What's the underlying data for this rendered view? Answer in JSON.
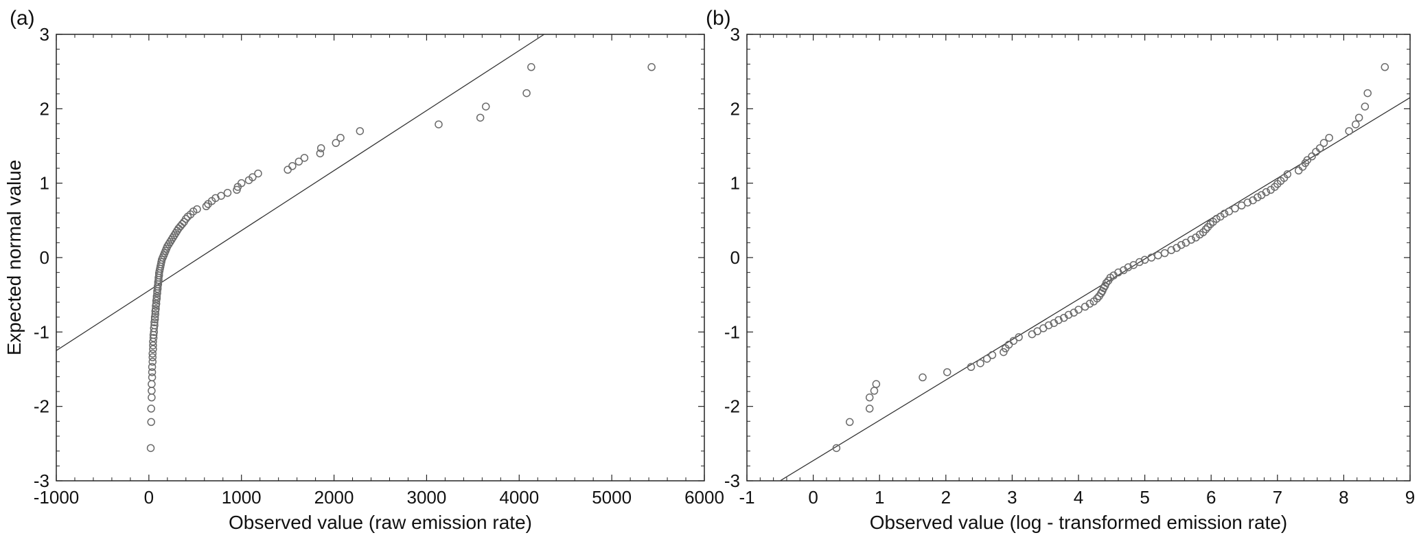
{
  "chart_data": [
    {
      "type": "scatter",
      "panel_label": "(a)",
      "xlabel": "Observed value (raw emission rate)",
      "ylabel": "Expected normal value",
      "xlim": [
        -1000,
        6000
      ],
      "ylim": [
        -3,
        3
      ],
      "x_ticks": [
        -1000,
        0,
        1000,
        2000,
        3000,
        4000,
        5000,
        6000
      ],
      "y_ticks": [
        -3,
        -2,
        -1,
        0,
        1,
        2,
        3
      ],
      "grid": false,
      "marker": "open-circle",
      "reference_line": {
        "x": [
          -1000,
          4270
        ],
        "y": [
          -1.25,
          3.0
        ]
      },
      "points": [
        [
          20,
          -2.56
        ],
        [
          25,
          -2.21
        ],
        [
          25,
          -2.03
        ],
        [
          30,
          -1.88
        ],
        [
          30,
          -1.79
        ],
        [
          30,
          -1.7
        ],
        [
          35,
          -1.61
        ],
        [
          35,
          -1.54
        ],
        [
          35,
          -1.47
        ],
        [
          40,
          -1.4
        ],
        [
          40,
          -1.34
        ],
        [
          40,
          -1.29
        ],
        [
          45,
          -1.23
        ],
        [
          45,
          -1.18
        ],
        [
          45,
          -1.13
        ],
        [
          50,
          -1.08
        ],
        [
          50,
          -1.04
        ],
        [
          55,
          -1.0
        ],
        [
          55,
          -0.95
        ],
        [
          60,
          -0.91
        ],
        [
          60,
          -0.87
        ],
        [
          65,
          -0.83
        ],
        [
          65,
          -0.8
        ],
        [
          70,
          -0.76
        ],
        [
          70,
          -0.72
        ],
        [
          75,
          -0.69
        ],
        [
          75,
          -0.65
        ],
        [
          80,
          -0.62
        ],
        [
          80,
          -0.58
        ],
        [
          85,
          -0.55
        ],
        [
          85,
          -0.52
        ],
        [
          90,
          -0.48
        ],
        [
          90,
          -0.45
        ],
        [
          95,
          -0.42
        ],
        [
          95,
          -0.39
        ],
        [
          100,
          -0.36
        ],
        [
          100,
          -0.33
        ],
        [
          105,
          -0.3
        ],
        [
          105,
          -0.27
        ],
        [
          110,
          -0.24
        ],
        [
          110,
          -0.21
        ],
        [
          115,
          -0.18
        ],
        [
          120,
          -0.15
        ],
        [
          125,
          -0.12
        ],
        [
          130,
          -0.09
        ],
        [
          135,
          -0.06
        ],
        [
          140,
          -0.03
        ],
        [
          150,
          0.0
        ],
        [
          160,
          0.03
        ],
        [
          170,
          0.06
        ],
        [
          180,
          0.09
        ],
        [
          190,
          0.12
        ],
        [
          200,
          0.15
        ],
        [
          215,
          0.18
        ],
        [
          230,
          0.21
        ],
        [
          245,
          0.24
        ],
        [
          260,
          0.27
        ],
        [
          275,
          0.3
        ],
        [
          290,
          0.33
        ],
        [
          305,
          0.36
        ],
        [
          320,
          0.39
        ],
        [
          340,
          0.42
        ],
        [
          360,
          0.45
        ],
        [
          380,
          0.48
        ],
        [
          400,
          0.52
        ],
        [
          420,
          0.55
        ],
        [
          450,
          0.58
        ],
        [
          480,
          0.62
        ],
        [
          520,
          0.65
        ],
        [
          620,
          0.69
        ],
        [
          640,
          0.72
        ],
        [
          680,
          0.76
        ],
        [
          720,
          0.8
        ],
        [
          780,
          0.83
        ],
        [
          850,
          0.87
        ],
        [
          950,
          0.91
        ],
        [
          960,
          0.95
        ],
        [
          1000,
          1.0
        ],
        [
          1080,
          1.04
        ],
        [
          1120,
          1.08
        ],
        [
          1180,
          1.13
        ],
        [
          1500,
          1.18
        ],
        [
          1550,
          1.23
        ],
        [
          1620,
          1.29
        ],
        [
          1680,
          1.34
        ],
        [
          1850,
          1.4
        ],
        [
          1860,
          1.47
        ],
        [
          2020,
          1.54
        ],
        [
          2070,
          1.61
        ],
        [
          2280,
          1.7
        ],
        [
          3130,
          1.79
        ],
        [
          3580,
          1.88
        ],
        [
          3640,
          2.03
        ],
        [
          4080,
          2.21
        ],
        [
          4130,
          2.56
        ],
        [
          5430,
          2.56
        ]
      ]
    },
    {
      "type": "scatter",
      "panel_label": "(b)",
      "xlabel": "Observed value (log - transformed emission rate)",
      "ylabel": "",
      "xlim": [
        -1,
        9
      ],
      "ylim": [
        -3,
        3
      ],
      "x_ticks": [
        -1,
        0,
        1,
        2,
        3,
        4,
        5,
        6,
        7,
        8,
        9
      ],
      "y_ticks": [
        -3,
        -2,
        -1,
        0,
        1,
        2,
        3
      ],
      "grid": false,
      "marker": "open-circle",
      "reference_line": {
        "x": [
          -0.5,
          9.0
        ],
        "y": [
          -3.0,
          2.15
        ]
      },
      "points": [
        [
          0.35,
          -2.56
        ],
        [
          0.55,
          -2.21
        ],
        [
          0.85,
          -2.03
        ],
        [
          0.85,
          -1.88
        ],
        [
          0.92,
          -1.79
        ],
        [
          0.95,
          -1.7
        ],
        [
          1.65,
          -1.61
        ],
        [
          2.02,
          -1.54
        ],
        [
          2.38,
          -1.47
        ],
        [
          2.52,
          -1.42
        ],
        [
          2.62,
          -1.36
        ],
        [
          2.7,
          -1.31
        ],
        [
          2.87,
          -1.27
        ],
        [
          2.9,
          -1.22
        ],
        [
          2.95,
          -1.17
        ],
        [
          3.02,
          -1.12
        ],
        [
          3.1,
          -1.07
        ],
        [
          3.3,
          -1.03
        ],
        [
          3.38,
          -0.99
        ],
        [
          3.47,
          -0.95
        ],
        [
          3.55,
          -0.91
        ],
        [
          3.63,
          -0.88
        ],
        [
          3.7,
          -0.84
        ],
        [
          3.78,
          -0.81
        ],
        [
          3.85,
          -0.77
        ],
        [
          3.93,
          -0.74
        ],
        [
          4.0,
          -0.7
        ],
        [
          4.1,
          -0.66
        ],
        [
          4.17,
          -0.62
        ],
        [
          4.23,
          -0.59
        ],
        [
          4.28,
          -0.55
        ],
        [
          4.31,
          -0.52
        ],
        [
          4.34,
          -0.48
        ],
        [
          4.36,
          -0.45
        ],
        [
          4.38,
          -0.41
        ],
        [
          4.4,
          -0.38
        ],
        [
          4.42,
          -0.34
        ],
        [
          4.45,
          -0.31
        ],
        [
          4.48,
          -0.27
        ],
        [
          4.53,
          -0.24
        ],
        [
          4.6,
          -0.2
        ],
        [
          4.68,
          -0.17
        ],
        [
          4.75,
          -0.13
        ],
        [
          4.83,
          -0.1
        ],
        [
          4.92,
          -0.06
        ],
        [
          5.0,
          -0.03
        ],
        [
          5.1,
          0.0
        ],
        [
          5.2,
          0.03
        ],
        [
          5.3,
          0.06
        ],
        [
          5.4,
          0.1
        ],
        [
          5.48,
          0.13
        ],
        [
          5.55,
          0.17
        ],
        [
          5.62,
          0.2
        ],
        [
          5.7,
          0.24
        ],
        [
          5.77,
          0.27
        ],
        [
          5.83,
          0.31
        ],
        [
          5.88,
          0.34
        ],
        [
          5.92,
          0.38
        ],
        [
          5.95,
          0.41
        ],
        [
          5.99,
          0.45
        ],
        [
          6.03,
          0.48
        ],
        [
          6.08,
          0.52
        ],
        [
          6.14,
          0.55
        ],
        [
          6.2,
          0.59
        ],
        [
          6.27,
          0.62
        ],
        [
          6.36,
          0.66
        ],
        [
          6.46,
          0.7
        ],
        [
          6.55,
          0.74
        ],
        [
          6.63,
          0.77
        ],
        [
          6.7,
          0.81
        ],
        [
          6.76,
          0.84
        ],
        [
          6.83,
          0.88
        ],
        [
          6.9,
          0.91
        ],
        [
          6.96,
          0.95
        ],
        [
          7.0,
          0.99
        ],
        [
          7.05,
          1.03
        ],
        [
          7.1,
          1.07
        ],
        [
          7.15,
          1.12
        ],
        [
          7.32,
          1.17
        ],
        [
          7.38,
          1.22
        ],
        [
          7.42,
          1.27
        ],
        [
          7.45,
          1.31
        ],
        [
          7.52,
          1.36
        ],
        [
          7.58,
          1.42
        ],
        [
          7.64,
          1.47
        ],
        [
          7.7,
          1.54
        ],
        [
          7.78,
          1.61
        ],
        [
          8.08,
          1.7
        ],
        [
          8.18,
          1.79
        ],
        [
          8.23,
          1.88
        ],
        [
          8.32,
          2.03
        ],
        [
          8.36,
          2.21
        ],
        [
          8.62,
          2.56
        ]
      ]
    }
  ]
}
